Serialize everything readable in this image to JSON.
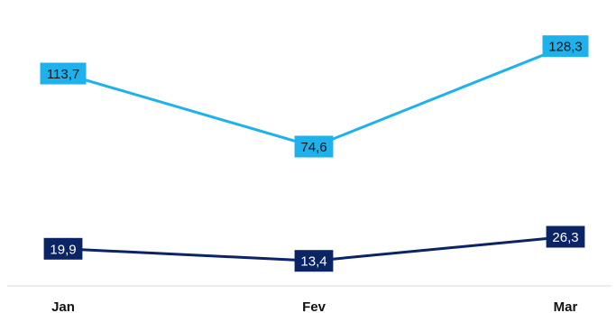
{
  "chart_data": {
    "type": "line",
    "title": "",
    "xlabel": "",
    "ylabel": "",
    "categories": [
      "Jan",
      "Fev",
      "Mar"
    ],
    "ylim": [
      0,
      140
    ],
    "grid": false,
    "legend": "none",
    "series": [
      {
        "values": [
          113.7,
          74.6,
          128.3
        ],
        "labels": [
          "113,7",
          "74,6",
          "128,3"
        ],
        "color": "#1FB1EB",
        "label_text_color": "#111111"
      },
      {
        "values": [
          19.9,
          13.4,
          26.3
        ],
        "labels": [
          "19,9",
          "13,4",
          "26,3"
        ],
        "color": "#0B2466",
        "label_text_color": "#ffffff"
      }
    ]
  }
}
